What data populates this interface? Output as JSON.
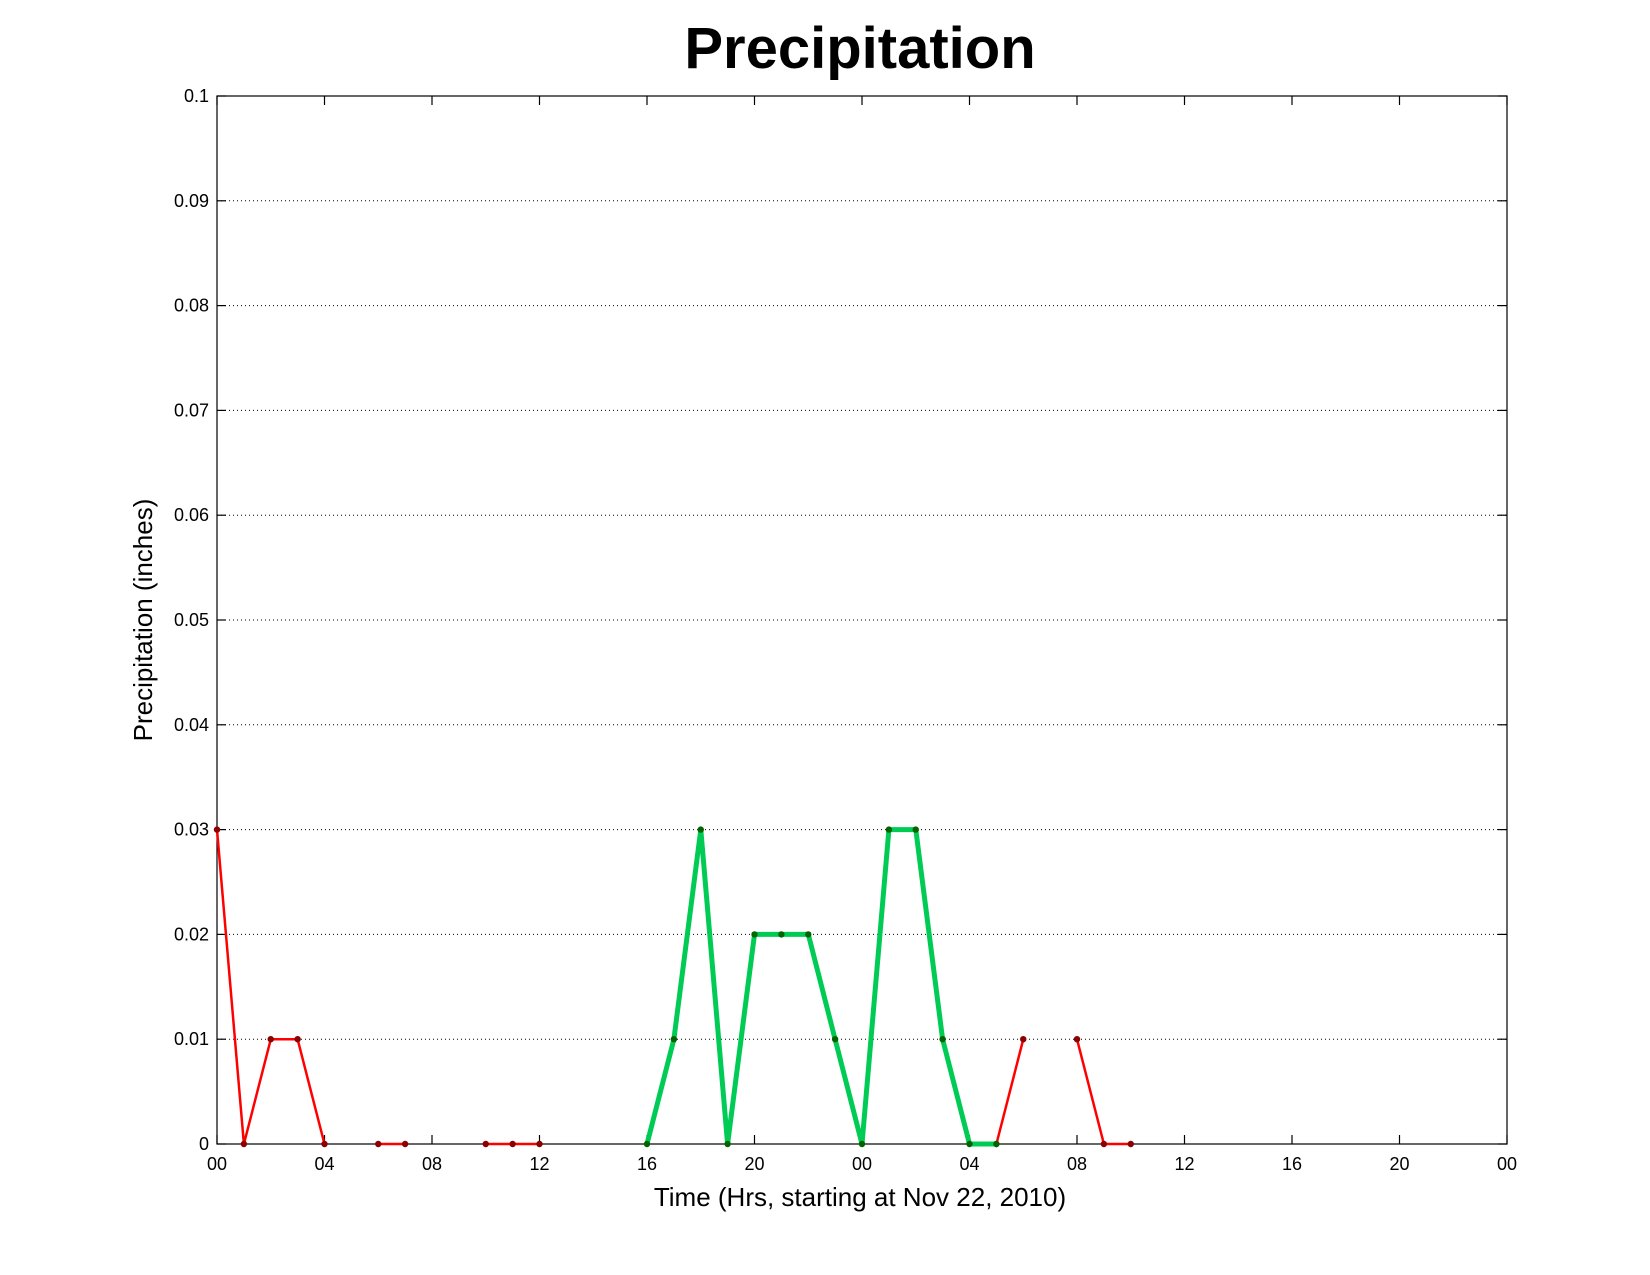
{
  "chart_data": {
    "type": "line",
    "title": "Precipitation",
    "xlabel": "Time (Hrs, starting at Nov 22, 2010)",
    "ylabel": "Precipitation (inches)",
    "xlim": [
      0,
      48
    ],
    "ylim": [
      0,
      0.1
    ],
    "grid": "y-dotted",
    "x_tick_values": [
      0,
      4,
      8,
      12,
      16,
      20,
      24,
      28,
      32,
      36,
      40,
      44,
      48
    ],
    "x_tick_labels": [
      "00",
      "04",
      "08",
      "12",
      "16",
      "20",
      "00",
      "04",
      "08",
      "12",
      "16",
      "20",
      "00"
    ],
    "y_tick_values": [
      0,
      0.01,
      0.02,
      0.03,
      0.04,
      0.05,
      0.06,
      0.07,
      0.08,
      0.09,
      0.1
    ],
    "y_tick_labels": [
      "0",
      "0.01",
      "0.02",
      "0.03",
      "0.04",
      "0.05",
      "0.06",
      "0.07",
      "0.08",
      "0.09",
      "0.1"
    ],
    "series": [
      {
        "color": "#ff0000",
        "marker_color": "#8b0000",
        "line_width": 2.5,
        "segments": [
          [
            [
              0,
              0.03
            ],
            [
              1,
              0
            ],
            [
              2,
              0.01
            ],
            [
              3,
              0.01
            ],
            [
              4,
              0
            ]
          ],
          [
            [
              6,
              0
            ],
            [
              7,
              0
            ]
          ],
          [
            [
              10,
              0
            ],
            [
              11,
              0
            ],
            [
              12,
              0
            ]
          ],
          [
            [
              29,
              0
            ],
            [
              30,
              0.01
            ]
          ],
          [
            [
              32,
              0.01
            ],
            [
              33,
              0
            ],
            [
              34,
              0
            ]
          ]
        ]
      },
      {
        "color": "#00cc55",
        "marker_color": "#006400",
        "line_width": 5,
        "segments": [
          [
            [
              16,
              0
            ],
            [
              17,
              0.01
            ],
            [
              18,
              0.03
            ],
            [
              19,
              0
            ],
            [
              20,
              0.02
            ],
            [
              21,
              0.02
            ],
            [
              22,
              0.02
            ],
            [
              23,
              0.01
            ],
            [
              24,
              0
            ],
            [
              25,
              0.03
            ],
            [
              26,
              0.03
            ],
            [
              27,
              0.01
            ],
            [
              28,
              0
            ],
            [
              29,
              0
            ]
          ]
        ]
      }
    ]
  }
}
